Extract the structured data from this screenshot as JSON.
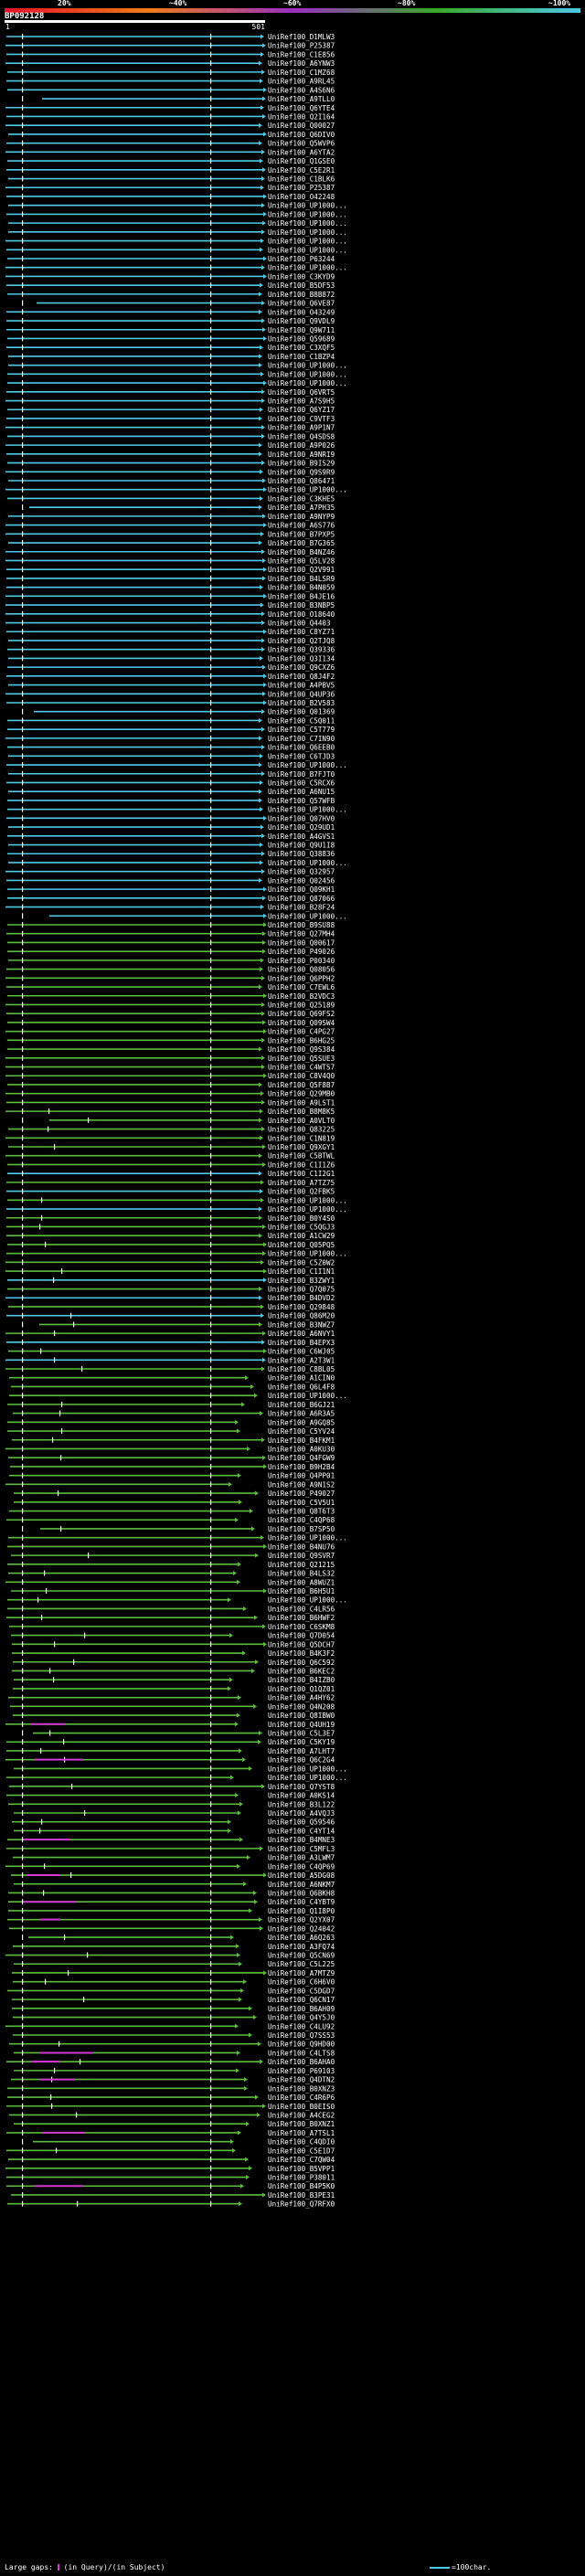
{
  "legend": {
    "stops": [
      "20%",
      "~40%",
      "~60%",
      "~80%",
      "~100%"
    ],
    "colors": [
      "#e8102a",
      "#f07d18",
      "#9a2fc0",
      "#3aa82a",
      "#4ec9e6"
    ]
  },
  "query": {
    "title": "BP092128",
    "start": "1",
    "end": "501"
  },
  "colors": {
    "high": "#4ec9e6",
    "mid": "#5cbd3c",
    "gap": "#d23ad2",
    "marker": "#ffffff",
    "background": "#000000"
  },
  "hits": [
    "UniRef100_D1MLW3",
    "UniRef100_P25387",
    "UniRef100_C1E856",
    "UniRef100_A6YNW3",
    "UniRef100_C1MZ68",
    "UniRef100_A9RL45",
    "UniRef100_A4S6N6",
    "UniRef100_A9TLL0",
    "UniRef100_Q6YTE4",
    "UniRef100_Q2I164",
    "UniRef100_Q00027",
    "UniRef100_Q6DIV0",
    "UniRef100_Q5WVP6",
    "UniRef100_A6YTA2",
    "UniRef100_Q1GSE0",
    "UniRef100_C5E2R1",
    "UniRef100_C1BLK6",
    "UniRef100_P25387",
    "UniRef100_O42248",
    "UniRef100_UP1000...",
    "UniRef100_UP1000...",
    "UniRef100_UP1000...",
    "UniRef100_UP1000...",
    "UniRef100_UP1000...",
    "UniRef100_UP1000...",
    "UniRef100_P63244",
    "UniRef100_UP1000...",
    "UniRef100_C3KYD9",
    "UniRef100_B5DF53",
    "UniRef100_B8B872",
    "UniRef100_Q6VE87",
    "UniRef100_O43249",
    "UniRef100_Q9VDL9",
    "UniRef100_Q9W711",
    "UniRef100_Q59689",
    "UniRef100_C3XQF5",
    "UniRef100_C1BZP4",
    "UniRef100_UP1000...",
    "UniRef100_UP1000...",
    "UniRef100_UP1000...",
    "UniRef100_Q6VRT5",
    "UniRef100_A7S9H5",
    "UniRef100_Q6YZ17",
    "UniRef100_C9VTF3",
    "UniRef100_A9P1N7",
    "UniRef100_Q4SDS8",
    "UniRef100_A9P026",
    "UniRef100_A9NRI9",
    "UniRef100_B9IS29",
    "UniRef100_Q9S9R9",
    "UniRef100_Q86471",
    "UniRef100_UP1000...",
    "UniRef100_C3KHE5",
    "UniRef100_A7PH35",
    "UniRef100_A9NYP9",
    "UniRef100_A6S776",
    "UniRef100_B7PXP5",
    "UniRef100_B7G365",
    "UniRef100_B4NZ46",
    "UniRef100_Q5LV28",
    "UniRef100_Q2V991",
    "UniRef100_B4LSR9",
    "UniRef100_B4N059",
    "UniRef100_B4JE16",
    "UniRef100_B3NBP5",
    "UniRef100_O18640",
    "UniRef100_Q4403",
    "UniRef100_C8YZ71",
    "UniRef100_Q2TJQ8",
    "UniRef100_Q39336",
    "UniRef100_Q3I134",
    "UniRef100_Q9CXZ6",
    "UniRef100_Q8J4F2",
    "UniRef100_A4PBV5",
    "UniRef100_Q4UP36",
    "UniRef100_B2V583",
    "UniRef100_Q01369",
    "UniRef100_C5Q011",
    "UniRef100_C5T779",
    "UniRef100_C7IN90",
    "UniRef100_Q6EEB0",
    "UniRef100_C6TJD3",
    "UniRef100_UP1000...",
    "UniRef100_B7FJT0",
    "UniRef100_C5RCX6",
    "UniRef100_A6NU15",
    "UniRef100_Q57WFB",
    "UniRef100_UP1000...",
    "UniRef100_Q07HV0",
    "UniRef100_Q29UD1",
    "UniRef100_A4GVS1",
    "UniRef100_Q9U1I8",
    "UniRef100_Q38836",
    "UniRef100_UP1000...",
    "UniRef100_Q32957",
    "UniRef100_Q02456",
    "UniRef100_Q09KH1",
    "UniRef100_Q87066",
    "UniRef100_B28F24",
    "UniRef100_UP1000...",
    "UniRef100_B9SU88",
    "UniRef100_Q27MH4",
    "UniRef100_Q00617",
    "UniRef100_P49026",
    "UniRef100_P00340",
    "UniRef100_Q08056",
    "UniRef100_Q6PPH2",
    "UniRef100_C7EWL6",
    "UniRef100_B2VDC3",
    "UniRef100_Q25189",
    "UniRef100_Q69FS2",
    "UniRef100_Q09SW4",
    "UniRef100_C4PG27",
    "UniRef100_B6HG25",
    "UniRef100_Q9S384",
    "UniRef100_Q5SUE3",
    "UniRef100_C4WTS7",
    "UniRef100_C8V4Q0",
    "UniRef100_Q5F8B7",
    "UniRef100_Q29MB0",
    "UniRef100_A9LST1",
    "UniRef100_B8M8K5",
    "UniRef100_A0VLT0",
    "UniRef100_Q83225",
    "UniRef100_C1N819",
    "UniRef100_Q9XGY1",
    "UniRef100_C5BTWL",
    "UniRef100_C1I1Z6",
    "UniRef100_C1I2G1",
    "UniRef100_A7TZ75",
    "UniRef100_Q2FBK5",
    "UniRef100_UP1000...",
    "UniRef100_UP1000...",
    "UniRef100_B0Y4S0",
    "UniRef100_C5QGJ3",
    "UniRef100_A1CW29",
    "UniRef100_Q05PQ5",
    "UniRef100_UP1000...",
    "UniRef100_C5Z0W2",
    "UniRef100_C1I1N1",
    "UniRef100_B3ZWY1",
    "UniRef100_Q7Q075",
    "UniRef100_B4DVD2",
    "UniRef100_Q29848",
    "UniRef100_Q86M20",
    "UniRef100_B3NWZ7",
    "UniRef100_A6NVY1",
    "UniRef100_B4EPX3",
    "UniRef100_C6WJ05",
    "UniRef100_A2T3W1",
    "UniRef100_C8BL05",
    "UniRef100_A1CIN0",
    "UniRef100_Q6L4F8",
    "UniRef100_UP1000...",
    "UniRef100_B6GJ21",
    "UniRef100_A6R3A5",
    "UniRef100_A9GQ85",
    "UniRef100_C5YV24",
    "UniRef100_B4FKM1",
    "UniRef100_A0KU30",
    "UniRef100_Q4FGW9",
    "UniRef100_B9H2B4",
    "UniRef100_Q4PP01",
    "UniRef100_A9N1S2",
    "UniRef100_P49027",
    "UniRef100_C5V5U1",
    "UniRef100_Q8T6T3",
    "UniRef100_C4QP68",
    "UniRef100_B7SP50",
    "UniRef100_UP1000...",
    "UniRef100_B4NU76",
    "UniRef100_Q9SVR7",
    "UniRef100_Q21215",
    "UniRef100_B4LS32",
    "UniRef100_A8WUZ1",
    "UniRef100_B6H5U1",
    "UniRef100_UP1000...",
    "UniRef100_C4LR56",
    "UniRef100_B6HWF2",
    "UniRef100_C6SKM8",
    "UniRef100_Q7D054",
    "UniRef100_Q5DCH7",
    "UniRef100_B4K3F2",
    "UniRef100_Q6C592",
    "UniRef100_B6KEC2",
    "UniRef100_B4IZB0",
    "UniRef100_Q1QZ01",
    "UniRef100_A4HY62",
    "UniRef100_Q4N208",
    "UniRef100_Q8IBW0",
    "UniRef100_Q4UH19",
    "UniRef100_C5L3E7",
    "UniRef100_C5KY19",
    "UniRef100_A7LHT7",
    "UniRef100_Q6C2G4",
    "UniRef100_UP1000...",
    "UniRef100_UP1000...",
    "UniRef100_Q7YST8",
    "UniRef100_A0KS14",
    "UniRef100_B3L122",
    "UniRef100_A4VQJ3",
    "UniRef100_Q59546",
    "UniRef100_C4YT14",
    "UniRef100_B4MNE3",
    "UniRef100_C5MFL3",
    "UniRef100_A3LWM7",
    "UniRef100_C4QP69",
    "UniRef100_A5DG08",
    "UniRef100_A6NKM7",
    "UniRef100_Q6BKH8",
    "UniRef100_C4YBT9",
    "UniRef100_Q1I8P0",
    "UniRef100_Q2YX07",
    "UniRef100_Q24042",
    "UniRef100_A6Q263",
    "UniRef100_A3FQ74",
    "UniRef100_Q5CN69",
    "UniRef100_C5L225",
    "UniRef100_A7MTZ9",
    "UniRef100_C6H6V0",
    "UniRef100_C5DGD7",
    "UniRef100_Q6CN17",
    "UniRef100_B6AH09",
    "UniRef100_Q4Y5J0",
    "UniRef100_C4LU92",
    "UniRef100_Q7SS53",
    "UniRef100_Q9HD00",
    "UniRef100_C4LTS8",
    "UniRef100_B6AHA0",
    "UniRef100_P69103",
    "UniRef100_Q4DTN2",
    "UniRef100_B0XNZ3",
    "UniRef100_C4R6P6",
    "UniRef100_B0EIS0",
    "UniRef100_A4CEG2",
    "UniRef100_B0XNZ1",
    "UniRef100_A7TSL1",
    "UniRef100_C4QDI0",
    "UniRef100_C5E1D7",
    "UniRef100_C7QW04",
    "UniRef100_B5VPP1",
    "UniRef100_P38011",
    "UniRef100_B4P5K0",
    "UniRef100_B3PE31",
    "UniRef100_Q7RFX0"
  ],
  "footer": {
    "left_prefix": "Large gaps:",
    "left_query": "(in Query)",
    "separator": "/",
    "left_subject": "(in Subject)",
    "right": "=100char."
  }
}
